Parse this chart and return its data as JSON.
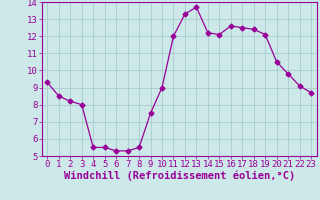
{
  "x": [
    0,
    1,
    2,
    3,
    4,
    5,
    6,
    7,
    8,
    9,
    10,
    11,
    12,
    13,
    14,
    15,
    16,
    17,
    18,
    19,
    20,
    21,
    22,
    23
  ],
  "y": [
    9.3,
    8.5,
    8.2,
    8.0,
    5.5,
    5.5,
    5.3,
    5.3,
    5.5,
    7.5,
    9.0,
    12.0,
    13.3,
    13.7,
    12.2,
    12.1,
    12.6,
    12.5,
    12.4,
    12.1,
    10.5,
    9.8,
    9.1,
    8.7
  ],
  "line_color": "#990099",
  "marker": "D",
  "marker_size": 2.5,
  "bg_color": "#cce8e8",
  "grid_color": "#aacccc",
  "xlabel": "Windchill (Refroidissement éolien,°C)",
  "ylim": [
    5,
    14
  ],
  "xlim": [
    -0.5,
    23.5
  ],
  "yticks": [
    5,
    6,
    7,
    8,
    9,
    10,
    11,
    12,
    13,
    14
  ],
  "xticks": [
    0,
    1,
    2,
    3,
    4,
    5,
    6,
    7,
    8,
    9,
    10,
    11,
    12,
    13,
    14,
    15,
    16,
    17,
    18,
    19,
    20,
    21,
    22,
    23
  ],
  "axis_label_color": "#990099",
  "tick_color": "#990099",
  "spine_color": "#990099",
  "font_size": 6.5,
  "xlabel_font_size": 7.5
}
